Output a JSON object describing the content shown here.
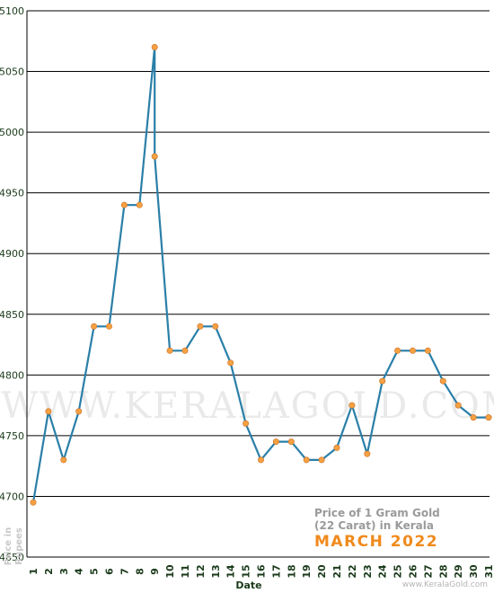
{
  "chart_data": {
    "type": "line",
    "xlabel": "Date",
    "ylabel_line1": "Price in",
    "ylabel_line2": "Rupees",
    "ylim": [
      4650,
      5100
    ],
    "yticks": [
      4650,
      4700,
      4750,
      4800,
      4850,
      4900,
      4950,
      5000,
      5050,
      5100
    ],
    "categories": [
      "1",
      "2",
      "3",
      "4",
      "5",
      "6",
      "7",
      "8",
      "9",
      "10",
      "11",
      "12",
      "13",
      "14",
      "15",
      "16",
      "17",
      "18",
      "19",
      "20",
      "21",
      "22",
      "23",
      "24",
      "25",
      "26",
      "27",
      "28",
      "29",
      "30",
      "31"
    ],
    "points": [
      {
        "x": 1,
        "y": 4695
      },
      {
        "x": 2,
        "y": 4770
      },
      {
        "x": 3,
        "y": 4730
      },
      {
        "x": 4,
        "y": 4770
      },
      {
        "x": 5,
        "y": 4840
      },
      {
        "x": 6,
        "y": 4840
      },
      {
        "x": 7,
        "y": 4940
      },
      {
        "x": 8,
        "y": 4940
      },
      {
        "x": 9,
        "y": 5070
      },
      {
        "x": 9,
        "y": 4980
      },
      {
        "x": 10,
        "y": 4820
      },
      {
        "x": 11,
        "y": 4820
      },
      {
        "x": 12,
        "y": 4840
      },
      {
        "x": 13,
        "y": 4840
      },
      {
        "x": 14,
        "y": 4810
      },
      {
        "x": 15,
        "y": 4760
      },
      {
        "x": 16,
        "y": 4730
      },
      {
        "x": 17,
        "y": 4745
      },
      {
        "x": 18,
        "y": 4745
      },
      {
        "x": 19,
        "y": 4730
      },
      {
        "x": 20,
        "y": 4730
      },
      {
        "x": 21,
        "y": 4740
      },
      {
        "x": 22,
        "y": 4775
      },
      {
        "x": 23,
        "y": 4735
      },
      {
        "x": 24,
        "y": 4795
      },
      {
        "x": 25,
        "y": 4820
      },
      {
        "x": 26,
        "y": 4820
      },
      {
        "x": 27,
        "y": 4820
      },
      {
        "x": 28,
        "y": 4795
      },
      {
        "x": 29,
        "y": 4775
      },
      {
        "x": 30,
        "y": 4765
      },
      {
        "x": 31,
        "y": 4765
      }
    ],
    "grid": true,
    "line_color": "#2a7fa8",
    "marker_color": "#f5a142",
    "info_line1": "Price of 1 Gram Gold",
    "info_line2": "(22 Carat) in Kerala",
    "info_line3": "MARCH 2022",
    "watermark": "WWW.KERALAGOLD.COM",
    "credit": "www.KeralaGold.com"
  }
}
